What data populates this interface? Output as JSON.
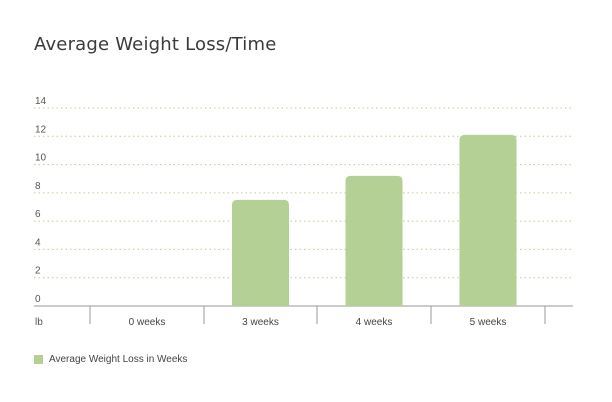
{
  "chart_data": {
    "type": "bar",
    "title": "Average Weight Loss/Time",
    "ylabel": "lb",
    "xlabel": "",
    "categories": [
      "0 weeks",
      "3 weeks",
      "4 weeks",
      "5 weeks"
    ],
    "series": [
      {
        "name": "Average Weight Loss in Weeks",
        "values": [
          0,
          7.5,
          9.2,
          12.1
        ]
      }
    ],
    "ylim": [
      0,
      14
    ],
    "yticks": [
      "0",
      "2",
      "4",
      "6",
      "8",
      "10",
      "12",
      "14"
    ],
    "grid": true,
    "legend_position": "bottom-left",
    "colors": {
      "bar": "#b5d095",
      "grid": "#b5d095",
      "axis": "#999999"
    }
  }
}
